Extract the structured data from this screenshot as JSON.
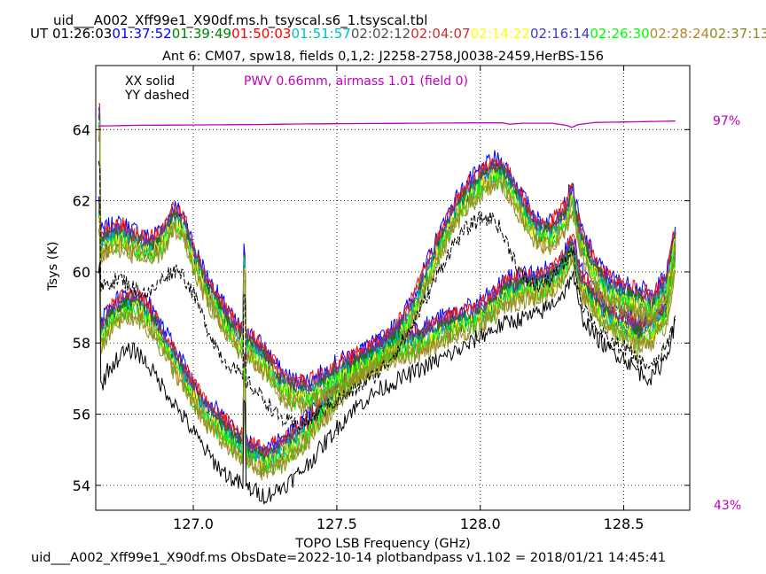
{
  "header": {
    "title": "uid___A002_Xff99e1_X90df.ms.h_tsyscal.s6_1.tsyscal.tbl",
    "ut_prefix": "UT",
    "times": [
      {
        "t": "01:26:03",
        "color": "#000000"
      },
      {
        "t": "01:37:52",
        "color": "#0000ff"
      },
      {
        "t": "01:39:49",
        "color": "#008000"
      },
      {
        "t": "01:50:03",
        "color": "#ff0000"
      },
      {
        "t": "01:51:57",
        "color": "#00bfbf"
      },
      {
        "t": "02:02:12",
        "color": "#505050"
      },
      {
        "t": "02:04:07",
        "color": "#c83232"
      },
      {
        "t": "02:14:22",
        "color": "#ffff00"
      },
      {
        "t": "02:16:14",
        "color": "#3c3cc8"
      },
      {
        "t": "02:26:30",
        "color": "#00ff00"
      },
      {
        "t": "02:28:24",
        "color": "#b8862b"
      },
      {
        "t": "02:37:13",
        "color": "#8c8c1e"
      }
    ],
    "subtitle": "Ant 6: CM07,  spw18,  fields 0,1,2: J2258-2758,J0038-2459,HerBS-156"
  },
  "legend": {
    "xx": "XX solid",
    "yy": "YY dashed",
    "pwv": "PWV 0.66mm, airmass 1.01 (field 0)",
    "pwv_color": "#bf00bf",
    "pct_top": "97%",
    "pct_bottom": "43%"
  },
  "footer": "uid___A002_Xff99e1_X90df.ms  ObsDate=2022-10-14   plotbandpass v1.102 = 2018/01/21 14:45:41",
  "chart_data": {
    "type": "line",
    "xlabel": "TOPO LSB Frequency (GHz)",
    "ylabel": "Tsys (K)",
    "xlim": [
      126.66,
      128.73
    ],
    "ylim": [
      53.3,
      65.8
    ],
    "xticks": [
      127.0,
      127.5,
      128.0,
      128.5
    ],
    "xtick_labels": [
      "127.0",
      "127.5",
      "128.0",
      "128.5"
    ],
    "yticks": [
      54,
      56,
      58,
      60,
      62,
      64
    ],
    "ytick_labels": [
      "54",
      "56",
      "58",
      "60",
      "62",
      "64"
    ],
    "grid": true,
    "curves": {
      "XX_upper": {
        "x": [
          126.67,
          126.7,
          126.75,
          126.8,
          126.85,
          126.9,
          126.93,
          126.97,
          127.0,
          127.05,
          127.1,
          127.15,
          127.2,
          127.25,
          127.3,
          127.35,
          127.4,
          127.45,
          127.5,
          127.55,
          127.6,
          127.65,
          127.7,
          127.75,
          127.8,
          127.85,
          127.9,
          127.95,
          128.0,
          128.05,
          128.08,
          128.12,
          128.16,
          128.2,
          128.25,
          128.3,
          128.32,
          128.35,
          128.4,
          128.45,
          128.5,
          128.55,
          128.6,
          128.65,
          128.68
        ],
        "y": [
          60.7,
          60.9,
          61.0,
          60.8,
          60.6,
          61.0,
          61.5,
          61.2,
          60.4,
          59.5,
          58.8,
          58.2,
          57.9,
          57.5,
          56.9,
          56.6,
          56.6,
          56.8,
          57.1,
          57.3,
          57.5,
          57.7,
          58.1,
          58.7,
          59.6,
          60.6,
          61.5,
          62.1,
          62.5,
          62.8,
          62.7,
          62.2,
          61.6,
          61.1,
          61.1,
          61.6,
          62.1,
          60.9,
          60.0,
          59.5,
          59.3,
          59.2,
          59.0,
          59.6,
          61.0
        ]
      },
      "XX_lower": {
        "x": [
          126.67,
          126.7,
          126.75,
          126.8,
          126.85,
          126.9,
          126.95,
          127.0,
          127.05,
          127.1,
          127.15,
          127.2,
          127.25,
          127.3,
          127.35,
          127.4,
          127.45,
          127.5,
          127.55,
          127.6,
          127.65,
          127.7,
          127.75,
          127.8,
          127.85,
          127.9,
          127.95,
          128.0,
          128.05,
          128.08,
          128.12,
          128.16,
          128.2,
          128.25,
          128.3,
          128.32,
          128.35,
          128.4,
          128.45,
          128.5,
          128.55,
          128.6,
          128.65,
          128.68
        ],
        "y": [
          58.0,
          58.6,
          59.0,
          59.1,
          58.7,
          58.0,
          57.3,
          56.6,
          56.0,
          55.6,
          55.2,
          54.9,
          54.7,
          54.9,
          55.2,
          55.6,
          56.1,
          56.6,
          57.1,
          57.5,
          57.7,
          57.9,
          58.0,
          58.1,
          58.3,
          58.5,
          58.6,
          58.8,
          59.1,
          59.4,
          59.5,
          59.6,
          59.6,
          59.8,
          60.3,
          60.7,
          59.7,
          59.1,
          58.7,
          58.5,
          58.2,
          58.4,
          58.9,
          60.5
        ]
      },
      "Black_upper": {
        "x": [
          126.67,
          126.7,
          126.75,
          126.8,
          126.85,
          126.9,
          126.95,
          127.0,
          127.05,
          127.1,
          127.15,
          127.2,
          127.25,
          127.3,
          127.35,
          127.4,
          127.45,
          127.5,
          127.55,
          127.6,
          127.65,
          127.7,
          127.75,
          127.8,
          127.85,
          127.9,
          127.95,
          128.0,
          128.05,
          128.1,
          128.15,
          128.2,
          128.25,
          128.3,
          128.32,
          128.35,
          128.4,
          128.45,
          128.5,
          128.55,
          128.6,
          128.65,
          128.68
        ],
        "y": [
          59.4,
          59.7,
          59.8,
          59.5,
          59.4,
          59.9,
          60.1,
          59.4,
          58.4,
          57.6,
          57.2,
          56.8,
          56.4,
          55.9,
          55.7,
          55.8,
          56.1,
          56.4,
          56.6,
          56.9,
          57.2,
          57.7,
          58.3,
          59.1,
          59.9,
          60.7,
          61.2,
          61.5,
          61.5,
          60.7,
          59.8,
          59.6,
          59.8,
          60.3,
          60.7,
          59.2,
          58.5,
          58.0,
          57.9,
          57.5,
          57.3,
          57.9,
          58.7
        ]
      },
      "Black_lower": {
        "x": [
          126.67,
          126.7,
          126.75,
          126.8,
          126.85,
          126.9,
          126.95,
          127.0,
          127.05,
          127.1,
          127.15,
          127.2,
          127.25,
          127.3,
          127.35,
          127.4,
          127.45,
          127.5,
          127.55,
          127.6,
          127.65,
          127.7,
          127.75,
          127.8,
          127.85,
          127.9,
          127.95,
          128.0,
          128.05,
          128.1,
          128.15,
          128.2,
          128.25,
          128.3,
          128.32,
          128.35,
          128.4,
          128.45,
          128.5,
          128.55,
          128.6,
          128.65,
          128.68
        ],
        "y": [
          56.6,
          57.2,
          57.7,
          57.8,
          57.3,
          56.7,
          56.1,
          55.5,
          54.9,
          54.4,
          54.1,
          53.9,
          53.7,
          53.9,
          54.2,
          54.6,
          55.1,
          55.6,
          56.1,
          56.4,
          56.7,
          56.9,
          57.1,
          57.3,
          57.5,
          57.7,
          57.9,
          58.2,
          58.4,
          58.6,
          58.7,
          58.8,
          59.1,
          59.5,
          60.0,
          58.8,
          58.2,
          57.8,
          57.6,
          57.2,
          57.0,
          57.7,
          58.6
        ]
      },
      "PWV_transmission": {
        "x": [
          126.67,
          126.8,
          127.0,
          127.2,
          127.4,
          127.6,
          127.8,
          128.0,
          128.08,
          128.1,
          128.15,
          128.25,
          128.3,
          128.32,
          128.34,
          128.4,
          128.55,
          128.68
        ],
        "y": [
          64.1,
          64.12,
          64.13,
          64.14,
          64.16,
          64.17,
          64.18,
          64.19,
          64.19,
          64.15,
          64.18,
          64.18,
          64.12,
          64.06,
          64.14,
          64.2,
          64.22,
          64.24
        ]
      }
    }
  }
}
